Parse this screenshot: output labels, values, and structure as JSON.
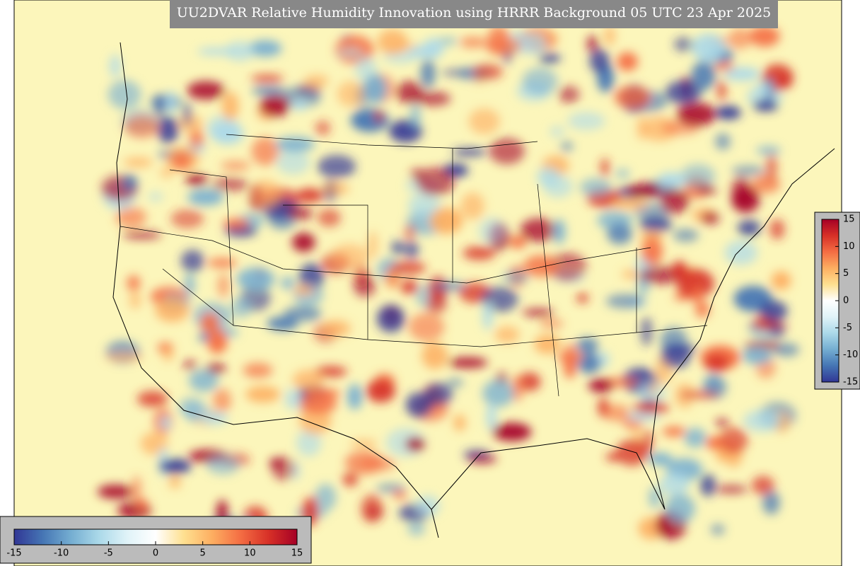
{
  "title": "UU2DVAR Relative Humidity Innovation using HRRR Background 05 UTC 23 Apr 2025",
  "colormap": [
    "#313695",
    "#4575b4",
    "#74add1",
    "#abd9e9",
    "#e0f3f8",
    "#ffffff",
    "#fee090",
    "#fdae61",
    "#f46d43",
    "#d73027",
    "#a50026"
  ],
  "colorbars": [
    {
      "orientation": "vertical",
      "lim": [
        -15,
        15
      ],
      "ticks": [
        -15,
        -10,
        -5,
        0,
        5,
        10,
        15
      ]
    },
    {
      "orientation": "horizontal",
      "lim": [
        -15,
        15
      ],
      "ticks": [
        -15,
        -10,
        -5,
        0,
        5,
        10,
        15
      ]
    }
  ]
}
